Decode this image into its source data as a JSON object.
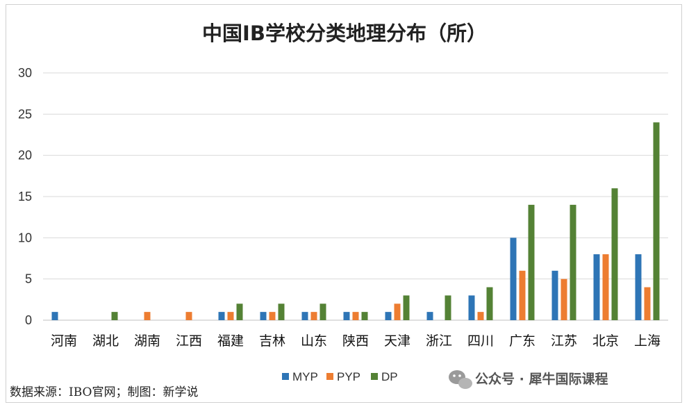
{
  "chart_data": {
    "type": "bar",
    "title": "中国IB学校分类地理分布（所）",
    "categories": [
      "河南",
      "湖北",
      "湖南",
      "江西",
      "福建",
      "吉林",
      "山东",
      "陕西",
      "天津",
      "浙江",
      "四川",
      "广东",
      "江苏",
      "北京",
      "上海"
    ],
    "series": [
      {
        "name": "MYP",
        "color": "#2E75B6",
        "values": [
          1,
          0,
          0,
          0,
          1,
          1,
          1,
          1,
          1,
          1,
          3,
          10,
          6,
          8,
          8
        ]
      },
      {
        "name": "PYP",
        "color": "#ED7D31",
        "values": [
          0,
          0,
          1,
          1,
          1,
          1,
          1,
          1,
          2,
          0,
          1,
          6,
          5,
          8,
          4
        ]
      },
      {
        "name": "DP",
        "color": "#548235",
        "values": [
          0,
          1,
          0,
          0,
          2,
          2,
          2,
          1,
          3,
          3,
          4,
          14,
          14,
          16,
          24
        ]
      }
    ],
    "ylim": [
      0,
      30
    ],
    "yticks": [
      "0",
      "5",
      "10",
      "15",
      "20",
      "25",
      "30"
    ],
    "grid": true,
    "legend": "bottom"
  },
  "footer": {
    "source": "数据来源：IBO官网；制图：新学说",
    "watermark": "公众号 · 犀牛国际课程"
  }
}
